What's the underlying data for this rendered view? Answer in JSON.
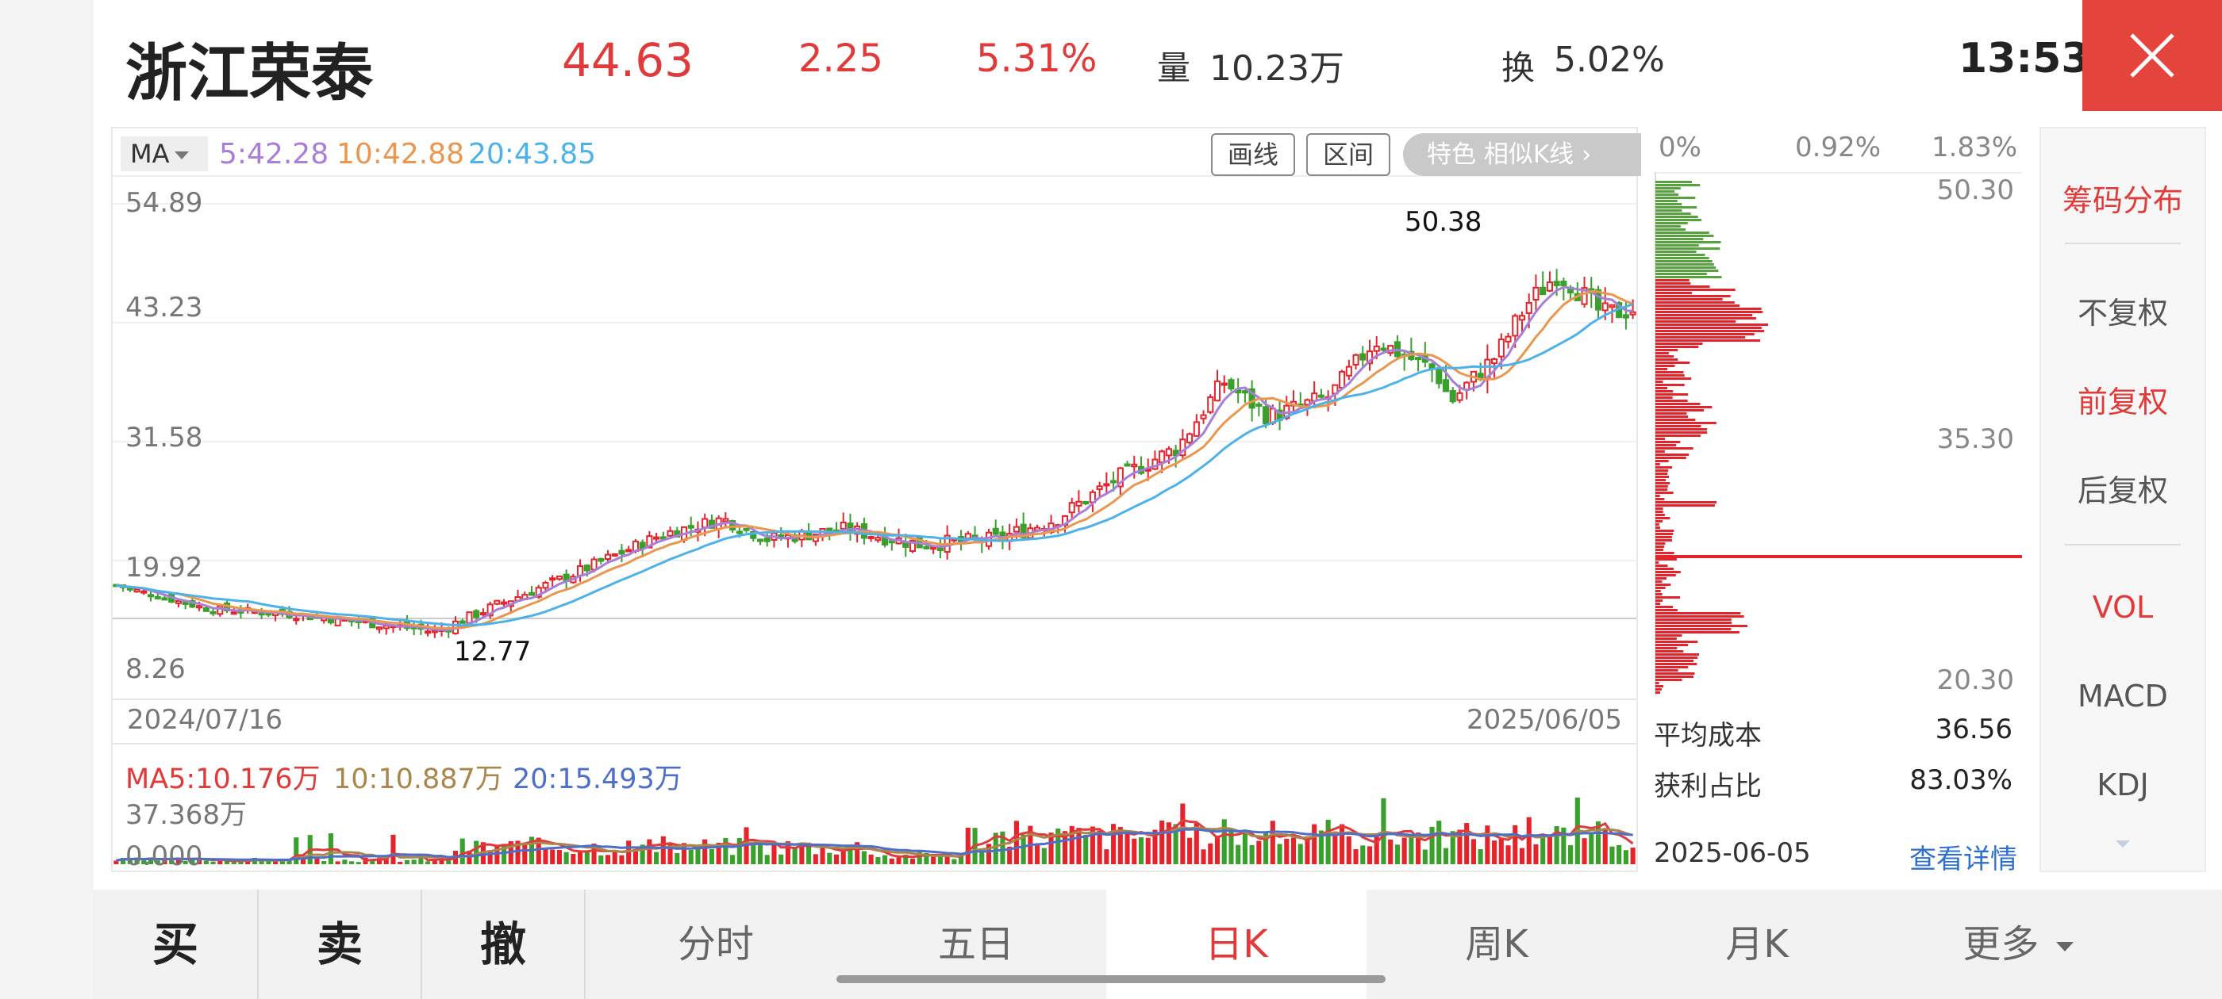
{
  "header": {
    "stock_name": "浙江荣泰",
    "price": "44.63",
    "change": "2.25",
    "change_pct": "5.31%",
    "volume_label": "量",
    "volume_value": "10.23万",
    "turnover_label": "换",
    "turnover_value": "5.02%",
    "time": "13:53",
    "close_icon": "close-icon"
  },
  "chart": {
    "ma_selector": "MA",
    "ma5": "5:42.28",
    "ma10": "10:42.88",
    "ma20": "20:43.85",
    "draw_btn": "画线",
    "range_btn": "区间",
    "feature_pill": "特色  相似K线 ›",
    "y_ticks": [
      "54.89",
      "43.23",
      "31.58",
      "19.92",
      "8.26"
    ],
    "start_date": "2024/07/16",
    "end_date": "2025/06/05",
    "high_label": "50.38",
    "low_label": "12.77",
    "colors": {
      "up": "#e5232b",
      "down": "#3aa02c",
      "ma5": "#a77fd9",
      "ma10": "#e9974f",
      "ma20": "#4db2ea"
    }
  },
  "volume": {
    "ma5": "MA5:10.176万",
    "ma10": "10:10.887万",
    "ma20": "20:15.493万",
    "top": "37.368万",
    "bottom": "0.000"
  },
  "chip": {
    "top_ticks": [
      "0%",
      "0.92%",
      "1.83%"
    ],
    "price_ticks": [
      "50.30",
      "35.30",
      "20.30"
    ],
    "avg_cost_label": "平均成本",
    "avg_cost_value": "36.56",
    "profit_ratio_label": "获利占比",
    "profit_ratio_value": "83.03%",
    "date": "2025-06-05",
    "detail_link": "查看详情"
  },
  "right_panel": {
    "title": "筹码分布",
    "no_adjust": "不复权",
    "forward_adjust": "前复权",
    "backward_adjust": "后复权",
    "vol": "VOL",
    "macd": "MACD",
    "kdj": "KDJ"
  },
  "bottom": {
    "buy": "买",
    "sell": "卖",
    "cancel": "撤",
    "tabs": [
      "分时",
      "五日",
      "日K",
      "周K",
      "月K",
      "更多"
    ],
    "active_tab": "日K"
  },
  "chart_data": {
    "type": "candlestick",
    "y_range": [
      8.26,
      54.89
    ],
    "x_range": [
      "2024/07/16",
      "2025/06/05"
    ],
    "series": [
      {
        "name": "MA5",
        "last": 42.28
      },
      {
        "name": "MA10",
        "last": 42.88
      },
      {
        "name": "MA20",
        "last": 43.85
      }
    ],
    "annotations": [
      {
        "text": "50.38"
      },
      {
        "text": "12.77"
      }
    ]
  }
}
